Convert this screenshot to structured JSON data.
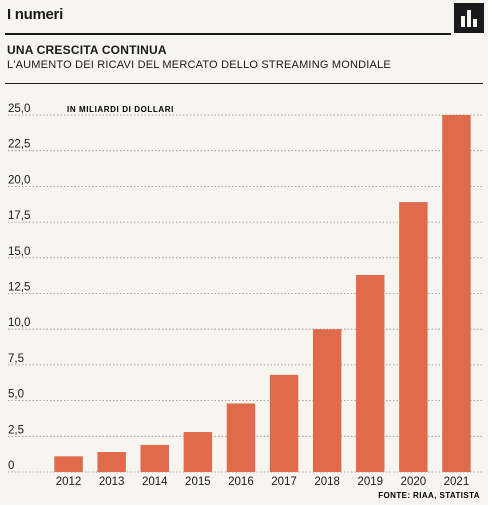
{
  "header": {
    "section_label": "I numeri"
  },
  "colors": {
    "bar": "#e06a4c",
    "grid": "#8a8a8a",
    "text": "#1a1a1a",
    "background": "#f7f5f0"
  },
  "chart_data": {
    "type": "bar",
    "title": "UNA CRESCITA CONTINUA",
    "subtitle": "L'AUMENTO DEI RICAVI DEL MERCATO DELLO STREAMING MONDIALE",
    "ylabel": "IN MILIARDI DI DOLLARI",
    "xlabel": "",
    "categories": [
      "2012",
      "2013",
      "2014",
      "2015",
      "2016",
      "2017",
      "2018",
      "2019",
      "2020",
      "2021"
    ],
    "values": [
      1.1,
      1.4,
      1.9,
      2.8,
      4.8,
      6.8,
      10.0,
      13.8,
      18.9,
      25.0
    ],
    "ylim": [
      0,
      25
    ],
    "yticks": [
      0,
      2.5,
      5.0,
      7.5,
      10.0,
      12.5,
      15.0,
      17.5,
      20.0,
      22.5,
      25.0
    ],
    "ytick_labels": [
      "0",
      "2,5",
      "5,0",
      "7,5",
      "10,0",
      "12,5",
      "15,0",
      "17,5",
      "20,0",
      "22,5",
      "25,0"
    ],
    "grid": true,
    "source": "FONTE: RIAA, STATISTA"
  }
}
